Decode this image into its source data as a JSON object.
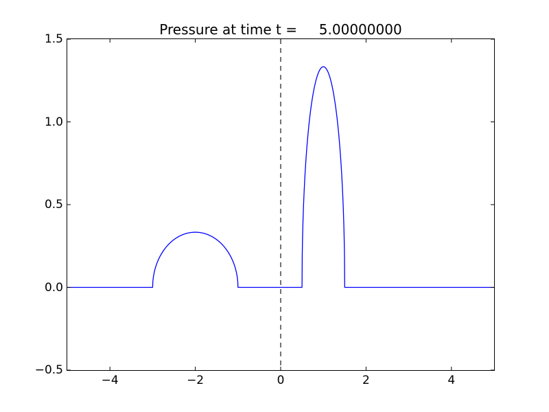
{
  "figure": {
    "background": "#ffffff",
    "frame_color": "#000000"
  },
  "chart_data": {
    "type": "line",
    "title": "Pressure at time t =     5.00000000",
    "xlabel": "",
    "ylabel": "",
    "xlim": [
      -5,
      5
    ],
    "ylim": [
      -0.5,
      1.5
    ],
    "grid": false,
    "legend": null,
    "x_ticks": [
      -4,
      -2,
      0,
      2,
      4
    ],
    "x_tick_labels": [
      "−4",
      "−2",
      "0",
      "2",
      "4"
    ],
    "y_ticks": [
      -0.5,
      0.0,
      0.5,
      1.0,
      1.5
    ],
    "y_tick_labels": [
      "−0.5",
      "0.0",
      "0.5",
      "1.0",
      "1.5"
    ],
    "series": [
      {
        "name": "pressure",
        "color": "#0000ff",
        "style": "solid",
        "shape": "zero baseline with two half-ellipse pulses",
        "bumps": [
          {
            "center": -2.0,
            "half_width": 1.0,
            "amplitude": 0.3333
          },
          {
            "center": 1.0,
            "half_width": 0.5,
            "amplitude": 1.3333
          }
        ],
        "points": [
          [
            -5.0,
            0
          ],
          [
            -3.0,
            0
          ],
          [
            -2.9,
            0.1453
          ],
          [
            -2.8,
            0.2
          ],
          [
            -2.7,
            0.238
          ],
          [
            -2.6,
            0.2667
          ],
          [
            -2.5,
            0.2887
          ],
          [
            -2.4,
            0.3055
          ],
          [
            -2.3,
            0.318
          ],
          [
            -2.2,
            0.3266
          ],
          [
            -2.1,
            0.3317
          ],
          [
            -2.0,
            0.3333
          ],
          [
            -1.9,
            0.3317
          ],
          [
            -1.8,
            0.3266
          ],
          [
            -1.7,
            0.318
          ],
          [
            -1.6,
            0.3055
          ],
          [
            -1.5,
            0.2887
          ],
          [
            -1.4,
            0.2667
          ],
          [
            -1.3,
            0.238
          ],
          [
            -1.2,
            0.2
          ],
          [
            -1.1,
            0.1453
          ],
          [
            -1.0,
            0
          ],
          [
            0.5,
            0
          ],
          [
            0.55,
            0.5812
          ],
          [
            0.6,
            0.8
          ],
          [
            0.65,
            0.9522
          ],
          [
            0.7,
            1.0667
          ],
          [
            0.75,
            1.1547
          ],
          [
            0.8,
            1.222
          ],
          [
            0.85,
            1.2719
          ],
          [
            0.9,
            1.3064
          ],
          [
            0.95,
            1.3267
          ],
          [
            1.0,
            1.3333
          ],
          [
            1.05,
            1.3267
          ],
          [
            1.1,
            1.3064
          ],
          [
            1.15,
            1.2719
          ],
          [
            1.2,
            1.222
          ],
          [
            1.25,
            1.1547
          ],
          [
            1.3,
            1.0667
          ],
          [
            1.35,
            0.9522
          ],
          [
            1.4,
            0.8
          ],
          [
            1.45,
            0.5812
          ],
          [
            1.5,
            0
          ],
          [
            5.0,
            0
          ]
        ]
      },
      {
        "name": "interface-line",
        "color": "#000000",
        "style": "dashed",
        "x": 0,
        "points": [
          [
            0,
            -0.5
          ],
          [
            0,
            1.5
          ]
        ]
      }
    ]
  }
}
